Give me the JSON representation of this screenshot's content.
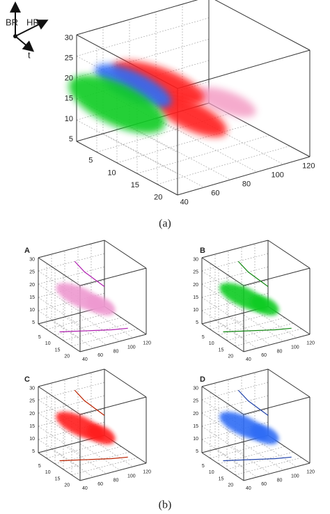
{
  "orientation": {
    "labels": [
      "BR",
      "HR",
      "t"
    ]
  },
  "panel_a": {
    "caption": "(a)",
    "z_ticks": [
      "5",
      "10",
      "15",
      "20",
      "25",
      "30"
    ],
    "t_ticks": [
      "5",
      "10",
      "15",
      "20"
    ],
    "hr_ticks": [
      "40",
      "60",
      "80",
      "100",
      "120"
    ]
  },
  "panel_b": {
    "caption": "(b)",
    "subpanels": [
      {
        "label": "A",
        "z_ticks": [
          "5",
          "10",
          "15",
          "20",
          "25",
          "30"
        ],
        "t_ticks": [
          "5",
          "10",
          "15",
          "20"
        ],
        "hr_ticks": [
          "40",
          "60",
          "80",
          "100",
          "120"
        ]
      },
      {
        "label": "B",
        "z_ticks": [
          "5",
          "10",
          "15",
          "20",
          "25",
          "30"
        ],
        "t_ticks": [
          "5",
          "10",
          "15",
          "20"
        ],
        "hr_ticks": [
          "40",
          "60",
          "80",
          "100",
          "120"
        ]
      },
      {
        "label": "C",
        "z_ticks": [
          "5",
          "10",
          "15",
          "20",
          "25",
          "30"
        ],
        "t_ticks": [
          "5",
          "10",
          "15",
          "20"
        ],
        "hr_ticks": [
          "40",
          "60",
          "80",
          "100",
          "120"
        ]
      },
      {
        "label": "D",
        "z_ticks": [
          "5",
          "10",
          "15",
          "20",
          "25",
          "30"
        ],
        "t_ticks": [
          "5",
          "10",
          "15",
          "20"
        ],
        "hr_ticks": [
          "40",
          "60",
          "80",
          "100",
          "120"
        ]
      }
    ]
  }
}
